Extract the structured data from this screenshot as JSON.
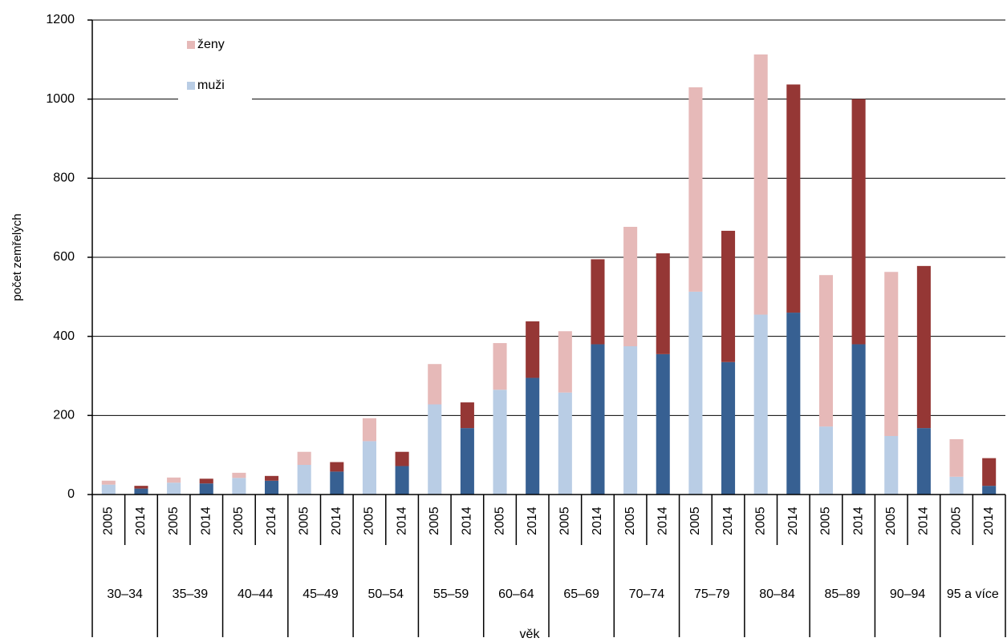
{
  "chart_data": {
    "type": "bar",
    "stacked": true,
    "ylabel": "počet zemřelých",
    "xlabel": "věk",
    "ylim": [
      0,
      1200
    ],
    "yticks": [
      0,
      200,
      400,
      600,
      800,
      1000,
      1200
    ],
    "grid": true,
    "groups": [
      "30–34",
      "35–39",
      "40–44",
      "45–49",
      "50–54",
      "55–59",
      "60–64",
      "65–69",
      "70–74",
      "75–79",
      "80–84",
      "85–89",
      "90–94",
      "95 a více"
    ],
    "x": [
      "2005",
      "2014",
      "2005",
      "2014",
      "2005",
      "2014",
      "2005",
      "2014",
      "2005",
      "2014",
      "2005",
      "2014",
      "2005",
      "2014",
      "2005",
      "2014",
      "2005",
      "2014",
      "2005",
      "2014",
      "2005",
      "2014",
      "2005",
      "2014",
      "2005",
      "2014",
      "2005",
      "2014"
    ],
    "legend_position": "upper left",
    "series": [
      {
        "name": "muži",
        "color": "#b9cde5",
        "color_2014": "#376092",
        "values": [
          25,
          15,
          30,
          28,
          42,
          35,
          75,
          58,
          135,
          72,
          228,
          168,
          265,
          295,
          258,
          380,
          375,
          355,
          513,
          335,
          455,
          460,
          172,
          380,
          148,
          168,
          45,
          22
        ]
      },
      {
        "name": "ženy",
        "color": "#e6b9b8",
        "color_2014": "#953735",
        "values": [
          10,
          7,
          13,
          12,
          13,
          12,
          33,
          24,
          58,
          36,
          102,
          65,
          118,
          143,
          155,
          215,
          302,
          255,
          517,
          332,
          658,
          577,
          383,
          620,
          415,
          410,
          95,
          70
        ]
      }
    ]
  }
}
